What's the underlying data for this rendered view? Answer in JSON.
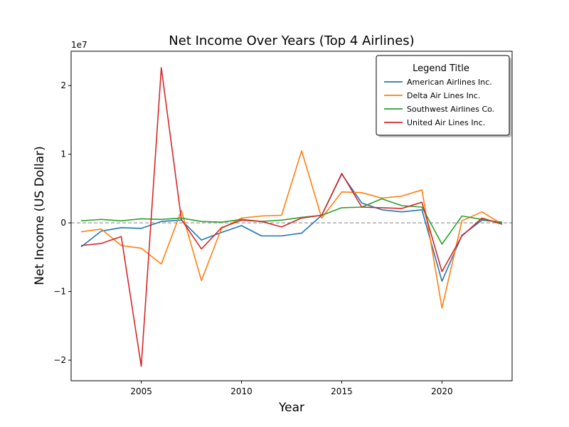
{
  "chart_data": {
    "type": "line",
    "title": "Net Income Over Years (Top 4 Airlines)",
    "xlabel": "Year",
    "ylabel": "Net Income (US Dollar)",
    "y_offset_label": "1e7",
    "y_scale": 10000000,
    "xlim": [
      2001.5,
      2023.5
    ],
    "ylim": [
      -23000000,
      25000000
    ],
    "x_ticks": [
      2005,
      2010,
      2015,
      2020
    ],
    "y_ticks": [
      -20000000,
      -10000000,
      0,
      10000000,
      20000000
    ],
    "y_tick_labels": [
      "−2",
      "−1",
      "0",
      "1",
      "2"
    ],
    "zero_line": true,
    "grid": false,
    "legend": {
      "title": "Legend Title",
      "position": "upper right"
    },
    "x": [
      2002,
      2003,
      2004,
      2005,
      2006,
      2007,
      2008,
      2009,
      2010,
      2011,
      2012,
      2013,
      2014,
      2015,
      2016,
      2017,
      2018,
      2019,
      2020,
      2021,
      2022,
      2023
    ],
    "series": [
      {
        "name": "American Airlines Inc.",
        "color": "#1f77b4",
        "values": [
          -3500000,
          -1200000,
          -700000,
          -800000,
          200000,
          400000,
          -2500000,
          -1400000,
          -400000,
          -1900000,
          -1900000,
          -1500000,
          1100000,
          7100000,
          2900000,
          1900000,
          1600000,
          1900000,
          -8500000,
          -1800000,
          400000,
          100000
        ]
      },
      {
        "name": "Delta Air Lines Inc.",
        "color": "#ff7f0e",
        "values": [
          -1300000,
          -900000,
          -3300000,
          -3700000,
          -6000000,
          1800000,
          -8400000,
          -800000,
          700000,
          1000000,
          1100000,
          10500000,
          700000,
          4500000,
          4400000,
          3600000,
          3900000,
          4800000,
          -12400000,
          300000,
          1600000,
          -200000
        ]
      },
      {
        "name": "Southwest Airlines Co.",
        "color": "#2ca02c",
        "values": [
          300000,
          500000,
          300000,
          600000,
          500000,
          700000,
          200000,
          100000,
          500000,
          200000,
          400000,
          800000,
          1100000,
          2200000,
          2300000,
          3500000,
          2500000,
          2300000,
          -3100000,
          1000000,
          500000,
          0
        ]
      },
      {
        "name": "United Air Lines Inc.",
        "color": "#d62728",
        "values": [
          -3300000,
          -3000000,
          -2000000,
          -20900000,
          22600000,
          500000,
          -3800000,
          -700000,
          400000,
          200000,
          -600000,
          700000,
          1100000,
          7200000,
          2300000,
          2200000,
          2100000,
          3000000,
          -7100000,
          -1900000,
          700000,
          -200000
        ]
      }
    ]
  }
}
